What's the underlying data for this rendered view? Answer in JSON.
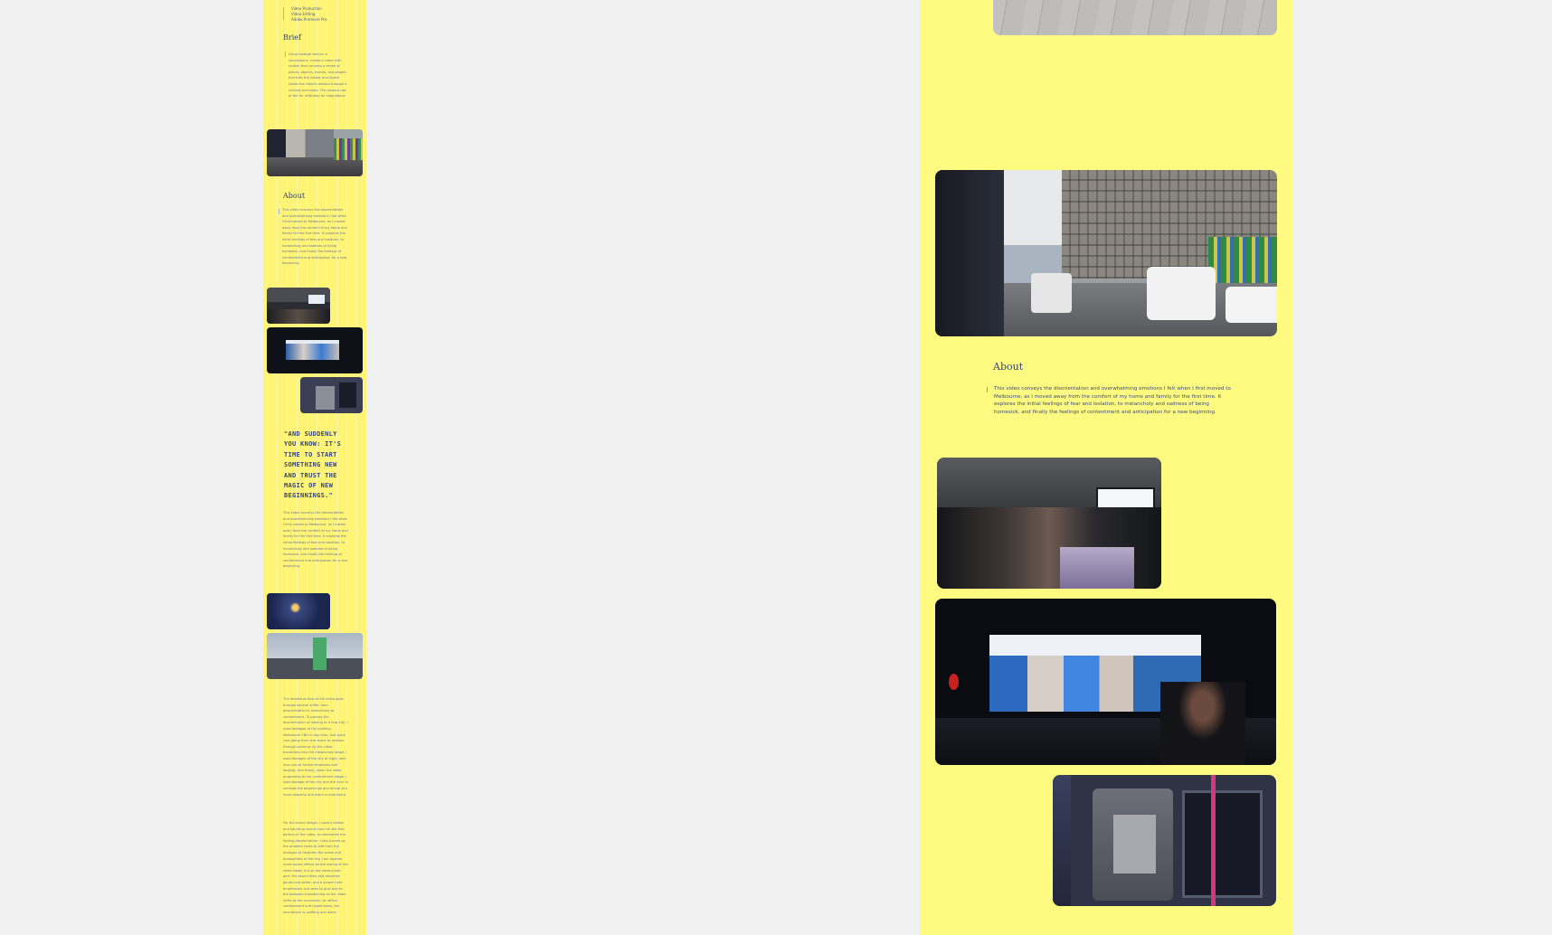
{
  "sidebar": {
    "credits": [
      "Video Production",
      "Video Editing",
      "Adobe Premiere Pro"
    ],
    "brief_heading": "Brief",
    "brief_text": "Using footage shot on a smartphone, create a video with motion that conveys a series of places, objects, events, and people, and tries the viewer and locate inside the video's realism through a moving technique. The present use of the for reflection an originations",
    "about_heading": "About",
    "about_text": "This video conveys the disorientation and overwhelming emotions I felt when I first moved to Melbourne, as I moved away from the comfort of my home and family for the first time. It explores the initial feelings of fear and isolation, to melancholy and sadness of being homesick, and finally the feelings of contentment and anticipation for a new beginning.",
    "quote": "\"AND SUDDENLY YOU KNOW: IT'S TIME TO START SOMETHING NEW AND TRUST THE MAGIC OF NEW BEGINNINGS.\"",
    "quote_text": "This video conveys the disorientation and overwhelming emotions I felt when I first moved to Melbourne, as I moved away from the comfort of my home and family for the first time. It explores the initial feelings of fear and isolation, to melancholy and sadness of being homesick, and finally the feelings of contentment and anticipation for a new beginning.",
    "process_text_1": "The emotional flow of the video goes through several shifts: from disorientation to melancholy to contentment. To portray the disorientation of moving to a new city, I used footages of the bustling Melbourne CBD in day time, and quick cuts going from one scene to another through panning. As the video transitions into the melancholy stage, I used footages of the city at night, with less cuts to further emphasis and longing. And finally, when the video progresses to the contentment stage, I used footage of the city and the river to contrast the beginnings and arrival at a more peaceful and warm environment.",
    "process_text_2": "For the sound design, I used a hollow and haunting sound track for the first portion of the video, to emphasise the feeling disorientation. I also turned up the ambient noise to add from the footages to heighten the sense and atmosphere of the city. I am layered more sound effects as the pacing of the video slows, but as the melancholic part, the sound dims and becomes gentle and softer, and a slower tune emphasises and aims to give way to the pleasant transitioning as the video shifts to the conclusion, to reflect contentment and hopefulness, the soundtrack is uplifting and warm"
  },
  "main": {
    "about_heading": "About",
    "about_text": "This video conveys the disorientation and overwhelming emotions I felt when I first moved to Melbourne, as I moved away from the comfort of my home and family for the first time. It explores the initial feelings of fear and isolation, to melancholy and sadness of being homesick, and finally the feelings of contentment and anticipation for a new beginning."
  },
  "colors": {
    "page_bg": "#f0f0f0",
    "panel_yellow": "#fffa80",
    "sidebar_yellow": "#fff475",
    "text_navy": "#2e3f6e"
  }
}
